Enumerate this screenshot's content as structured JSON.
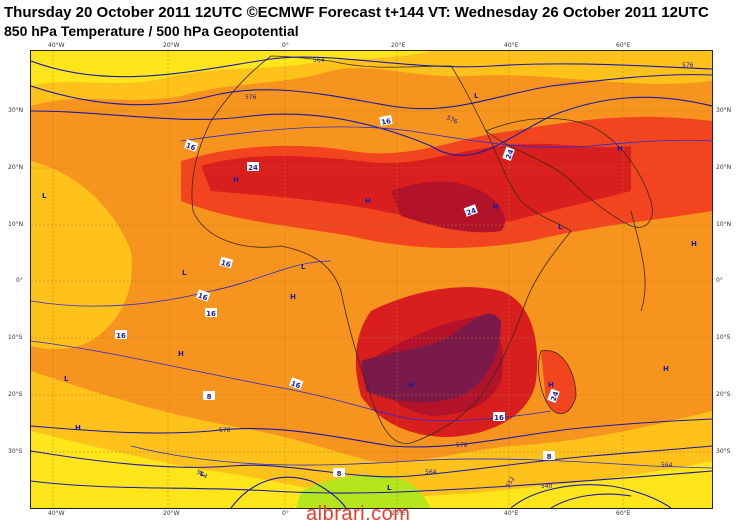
{
  "header": {
    "title_line1": "Thursday 20 October 2011 12UTC ©ECMWF Forecast t+144 VT: Wednesday 26 October 2011 12UTC",
    "title_line2": "850 hPa Temperature / 500 hPa Geopotential"
  },
  "axes": {
    "top_lon": [
      "40°W",
      "20°W",
      "0°",
      "20°E",
      "40°E",
      "60°E"
    ],
    "bottom_lon": [
      "40°W",
      "20°W",
      "0°",
      "20°E",
      "40°E",
      "60°E"
    ],
    "left_lat": [
      "30°N",
      "20°N",
      "10°N",
      "0°",
      "10°S",
      "20°S",
      "30°S"
    ],
    "right_lat": [
      "30°N",
      "20°N",
      "10°N",
      "0°",
      "10°S",
      "20°S",
      "30°S"
    ]
  },
  "isotherm_labels": [
    "24",
    "24",
    "24",
    "24",
    "16",
    "16",
    "16",
    "16",
    "16",
    "16",
    "16",
    "16",
    "8",
    "8",
    "8"
  ],
  "geopotential_labels": [
    "564",
    "576",
    "576",
    "576",
    "576",
    "576",
    "564",
    "552",
    "564",
    "564",
    "540"
  ],
  "pressure_centers": [
    "L",
    "L",
    "L",
    "L",
    "L",
    "L",
    "L",
    "L",
    "H",
    "H",
    "H",
    "H",
    "H",
    "H",
    "H",
    "H",
    "H",
    "H",
    "H"
  ],
  "colors": {
    "temp_8_12": "#ffe61a",
    "temp_12_16": "#ffc21a",
    "temp_16_20": "#f7941d",
    "temp_20_24": "#f2451f",
    "temp_24_28": "#d91e1e",
    "temp_28_32": "#b3122b",
    "temp_32_plus": "#7a1a4a",
    "cold_green": "#b5e61d",
    "contour_blue": "#1a1aa8",
    "coast": "#3a2a1a"
  },
  "watermark": "albrari.com"
}
